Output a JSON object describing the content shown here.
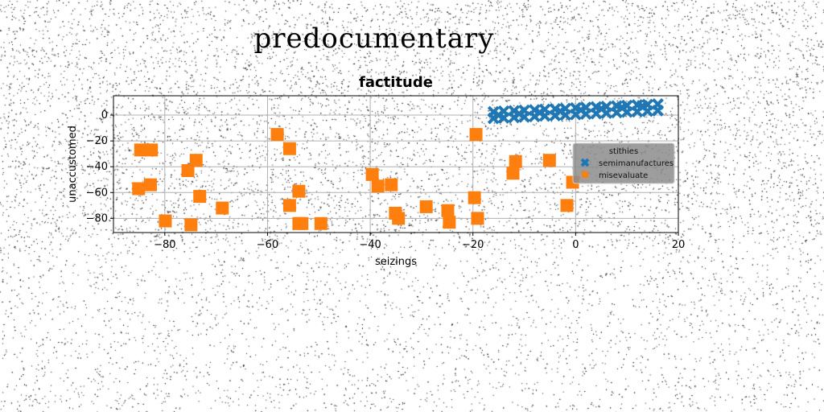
{
  "page": {
    "title": "predocumentary"
  },
  "chart_data": {
    "type": "scatter",
    "title": "factitude",
    "xlabel": "seizings",
    "ylabel": "unaccustomed",
    "xlim": [
      -90,
      20
    ],
    "ylim": [
      -91,
      15
    ],
    "xticks": [
      -80,
      -60,
      -40,
      -20,
      0,
      20
    ],
    "yticks": [
      0,
      -20,
      -40,
      -60,
      -80
    ],
    "grid": true,
    "legend": {
      "title": "stithies",
      "position": "right"
    },
    "colors": {
      "semimanufactures": "#1f77b4",
      "misevaluate": "#ff7f0e",
      "legend_bg": "#8c8c8c"
    },
    "series": [
      {
        "name": "semimanufactures",
        "marker": "x",
        "x": [
          -16,
          -14,
          -12,
          -10,
          -8,
          -6,
          -4,
          -2,
          0,
          2,
          4,
          6,
          8,
          10,
          12,
          14,
          16,
          -16,
          -14,
          -12,
          -10,
          -8,
          -6,
          -4,
          -2,
          0,
          2,
          4,
          6,
          8,
          10,
          12,
          14,
          16,
          -15,
          -11,
          -7,
          -3,
          1,
          5,
          9,
          13
        ],
        "y": [
          2.5,
          3,
          3.3,
          3.7,
          4,
          4.4,
          4.8,
          5.1,
          5.5,
          5.9,
          6.3,
          6.6,
          7,
          7.4,
          7.8,
          8.1,
          8.5,
          -2.5,
          -2.1,
          -1.8,
          -1.4,
          -1,
          -0.6,
          -0.3,
          0.1,
          0.5,
          0.9,
          1.2,
          1.6,
          2,
          2.4,
          2.7,
          3.1,
          3.5,
          0,
          1,
          2,
          3,
          4,
          5,
          6,
          7
        ]
      },
      {
        "name": "misevaluate",
        "marker": "s",
        "x": [
          -84.7,
          -82.6,
          -85.1,
          -82.8,
          -79.9,
          -75.5,
          -73.9,
          -74.9,
          -73.2,
          -68.8,
          -58.1,
          -55.7,
          -55.7,
          -53.9,
          -53.3,
          -53.9,
          -49.6,
          -39.6,
          -38.5,
          -35.9,
          -35.1,
          -34.5,
          -29.1,
          -24.9,
          -24.6,
          -19.4,
          -19.7,
          -19.1,
          -12.2,
          -11.7,
          -5.1,
          -1.7,
          -0.6
        ],
        "y": [
          -27,
          -27,
          -57,
          -54,
          -82,
          -43,
          -35,
          -85,
          -63,
          -72,
          -15,
          -26,
          -70,
          -59,
          -84,
          -84,
          -84,
          -46,
          -55,
          -54,
          -76,
          -80,
          -71,
          -74,
          -83,
          -15,
          -64,
          -80,
          -45,
          -36,
          -35,
          -70,
          -52
        ]
      }
    ]
  }
}
